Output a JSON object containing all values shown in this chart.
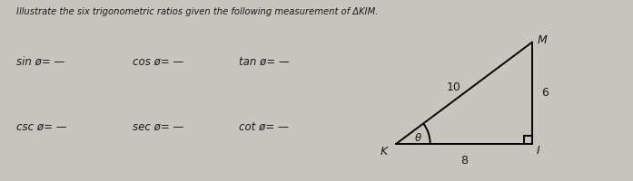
{
  "title": "Illustrate the six trigonometric ratios given the following measurement of ΔKIM.",
  "background_color": "#c8c4be",
  "text_color": "#1a1a1a",
  "formulas_row1": [
    "sin ø= —",
    "cos ø= —",
    "tan ø= —"
  ],
  "formulas_row2": [
    "csc ø= —",
    "sec ø= —",
    "cot ø= —"
  ],
  "triangle": {
    "K": [
      0.0,
      0.0
    ],
    "I": [
      8.0,
      0.0
    ],
    "M": [
      8.0,
      6.0
    ],
    "side_KI": "8",
    "side_MI": "6",
    "side_KM": "10",
    "angle_label": "θ"
  },
  "fig_width": 6.97,
  "fig_height": 2.0,
  "dpi": 100
}
